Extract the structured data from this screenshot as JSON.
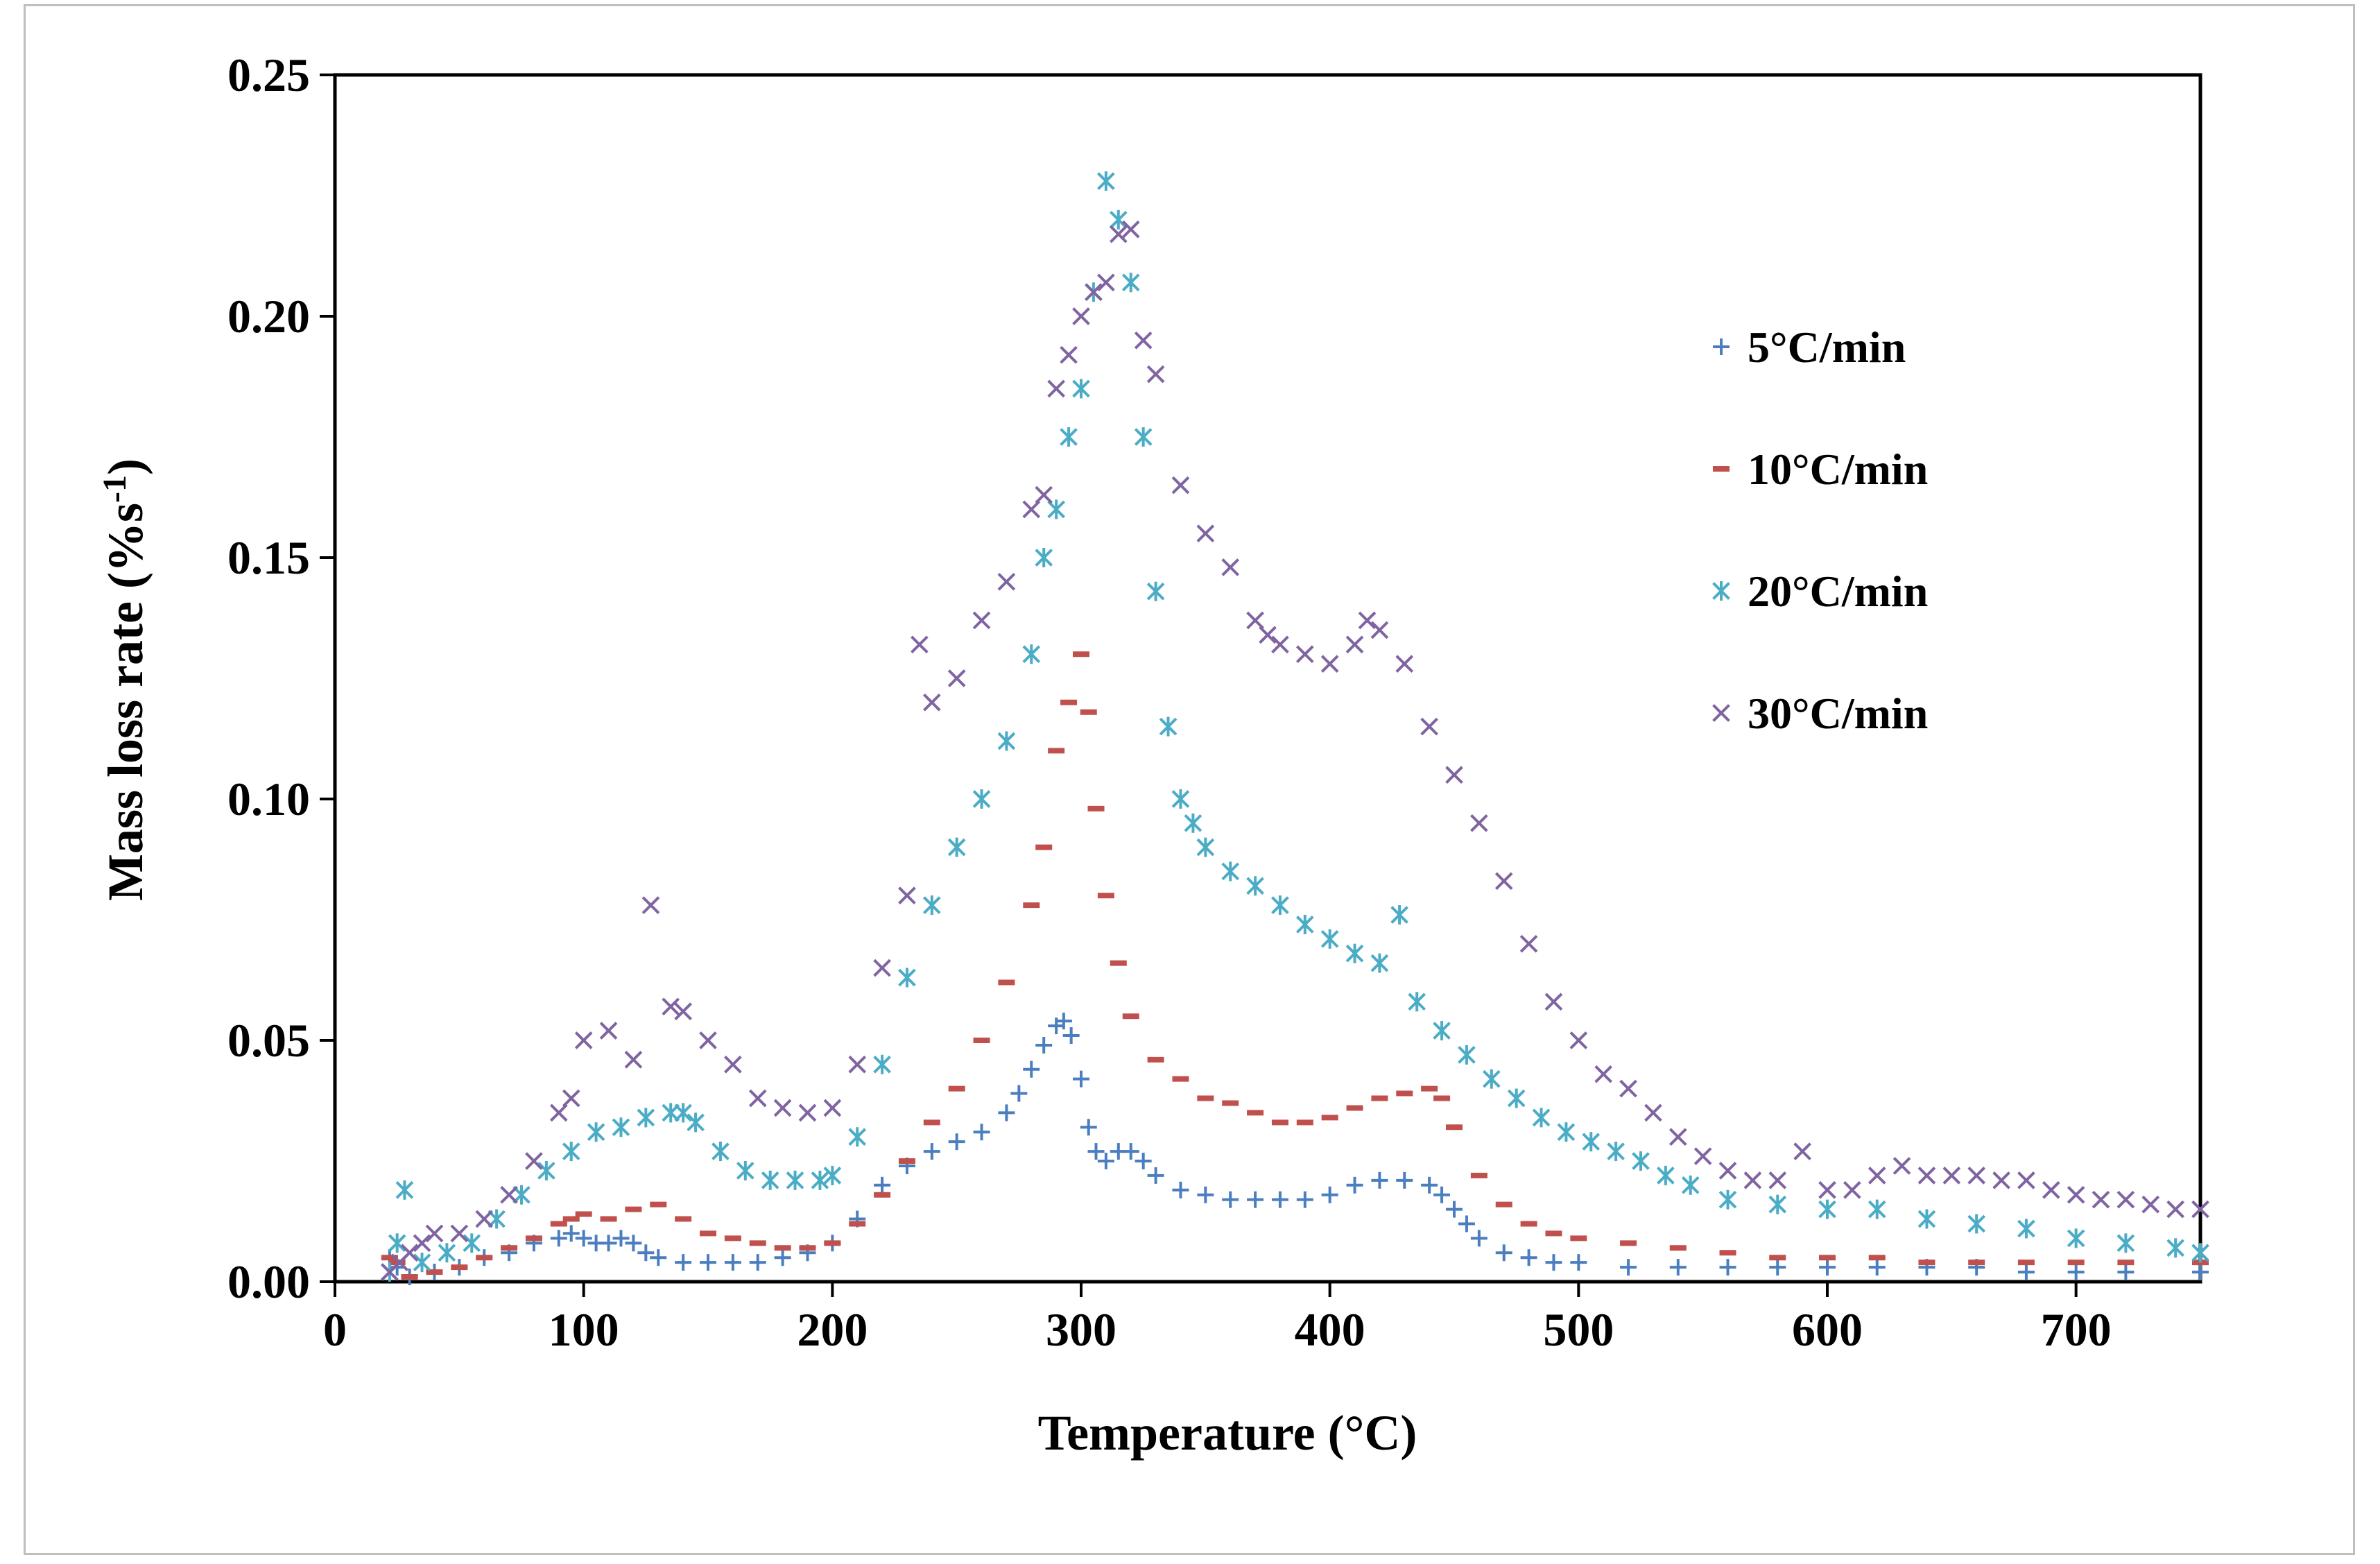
{
  "chart_data": {
    "type": "scatter",
    "title": "",
    "xlabel": "Temperature (°C)",
    "ylabel_main": "Mass loss rate  (%s",
    "ylabel_sup": "-1",
    "ylabel_end": ")",
    "xlim": [
      0,
      750
    ],
    "ylim": [
      0,
      0.25
    ],
    "x_ticks": [
      0,
      100,
      200,
      300,
      400,
      500,
      600,
      700
    ],
    "x_tick_labels": [
      "0",
      "100",
      "200",
      "300",
      "400",
      "500",
      "600",
      "700"
    ],
    "y_ticks": [
      0,
      0.05,
      0.1,
      0.15,
      0.2,
      0.25
    ],
    "y_tick_labels": [
      "0.00",
      "0.05",
      "0.10",
      "0.15",
      "0.20",
      "0.25"
    ],
    "grid": false,
    "legend_position": "right",
    "series": [
      {
        "name": "5°C/min",
        "marker": "plus",
        "color": "#4a7ebf",
        "x": [
          22,
          25,
          30,
          40,
          50,
          60,
          70,
          80,
          90,
          95,
          100,
          105,
          110,
          115,
          120,
          125,
          130,
          140,
          150,
          160,
          170,
          180,
          190,
          200,
          210,
          220,
          230,
          240,
          250,
          260,
          270,
          275,
          280,
          285,
          290,
          293,
          296,
          300,
          303,
          306,
          310,
          315,
          320,
          325,
          330,
          340,
          350,
          360,
          370,
          380,
          390,
          400,
          410,
          420,
          430,
          440,
          445,
          450,
          455,
          460,
          470,
          480,
          490,
          500,
          520,
          540,
          560,
          580,
          600,
          620,
          640,
          660,
          680,
          700,
          720,
          750
        ],
        "y": [
          0.005,
          0.003,
          0.001,
          0.002,
          0.003,
          0.005,
          0.006,
          0.008,
          0.009,
          0.01,
          0.009,
          0.008,
          0.008,
          0.009,
          0.008,
          0.006,
          0.005,
          0.004,
          0.004,
          0.004,
          0.004,
          0.005,
          0.006,
          0.008,
          0.013,
          0.02,
          0.024,
          0.027,
          0.029,
          0.031,
          0.035,
          0.039,
          0.044,
          0.049,
          0.053,
          0.054,
          0.051,
          0.042,
          0.032,
          0.027,
          0.025,
          0.027,
          0.027,
          0.025,
          0.022,
          0.019,
          0.018,
          0.017,
          0.017,
          0.017,
          0.017,
          0.018,
          0.02,
          0.021,
          0.021,
          0.02,
          0.018,
          0.015,
          0.012,
          0.009,
          0.006,
          0.005,
          0.004,
          0.004,
          0.003,
          0.003,
          0.003,
          0.003,
          0.003,
          0.003,
          0.003,
          0.003,
          0.002,
          0.002,
          0.002,
          0.002
        ]
      },
      {
        "name": "10°C/min",
        "marker": "dash",
        "color": "#c0504d",
        "x": [
          22,
          25,
          30,
          40,
          50,
          60,
          70,
          80,
          90,
          95,
          100,
          110,
          120,
          130,
          140,
          150,
          160,
          170,
          180,
          190,
          200,
          210,
          220,
          230,
          240,
          250,
          260,
          270,
          280,
          285,
          290,
          295,
          300,
          303,
          306,
          310,
          315,
          320,
          330,
          340,
          350,
          360,
          370,
          380,
          390,
          400,
          410,
          420,
          430,
          440,
          445,
          450,
          460,
          470,
          480,
          490,
          500,
          520,
          540,
          560,
          580,
          600,
          620,
          640,
          660,
          680,
          700,
          720,
          750
        ],
        "y": [
          0.005,
          0.004,
          0.001,
          0.002,
          0.003,
          0.005,
          0.007,
          0.009,
          0.012,
          0.013,
          0.014,
          0.013,
          0.015,
          0.016,
          0.013,
          0.01,
          0.009,
          0.008,
          0.007,
          0.007,
          0.008,
          0.012,
          0.018,
          0.025,
          0.033,
          0.04,
          0.05,
          0.062,
          0.078,
          0.09,
          0.11,
          0.12,
          0.13,
          0.118,
          0.098,
          0.08,
          0.066,
          0.055,
          0.046,
          0.042,
          0.038,
          0.037,
          0.035,
          0.033,
          0.033,
          0.034,
          0.036,
          0.038,
          0.039,
          0.04,
          0.038,
          0.032,
          0.022,
          0.016,
          0.012,
          0.01,
          0.009,
          0.008,
          0.007,
          0.006,
          0.005,
          0.005,
          0.005,
          0.004,
          0.004,
          0.004,
          0.004,
          0.004,
          0.004
        ]
      },
      {
        "name": "20°C/min",
        "marker": "asterisk",
        "color": "#4bacc6",
        "x": [
          22,
          25,
          28,
          35,
          45,
          55,
          65,
          75,
          85,
          95,
          105,
          115,
          125,
          135,
          140,
          145,
          155,
          165,
          175,
          185,
          195,
          200,
          210,
          220,
          230,
          240,
          250,
          260,
          270,
          280,
          285,
          290,
          295,
          300,
          305,
          310,
          315,
          320,
          325,
          330,
          335,
          340,
          345,
          350,
          360,
          370,
          380,
          390,
          400,
          410,
          420,
          428,
          435,
          445,
          455,
          465,
          475,
          485,
          495,
          505,
          515,
          525,
          535,
          545,
          560,
          580,
          600,
          620,
          640,
          660,
          680,
          700,
          720,
          740,
          750
        ],
        "y": [
          0.002,
          0.008,
          0.019,
          0.004,
          0.006,
          0.008,
          0.013,
          0.018,
          0.023,
          0.027,
          0.031,
          0.032,
          0.034,
          0.035,
          0.035,
          0.033,
          0.027,
          0.023,
          0.021,
          0.021,
          0.021,
          0.022,
          0.03,
          0.045,
          0.063,
          0.078,
          0.09,
          0.1,
          0.112,
          0.13,
          0.15,
          0.16,
          0.175,
          0.185,
          0.205,
          0.228,
          0.22,
          0.207,
          0.175,
          0.143,
          0.115,
          0.1,
          0.095,
          0.09,
          0.085,
          0.082,
          0.078,
          0.074,
          0.071,
          0.068,
          0.066,
          0.076,
          0.058,
          0.052,
          0.047,
          0.042,
          0.038,
          0.034,
          0.031,
          0.029,
          0.027,
          0.025,
          0.022,
          0.02,
          0.017,
          0.016,
          0.015,
          0.015,
          0.013,
          0.012,
          0.011,
          0.009,
          0.008,
          0.007,
          0.006
        ]
      },
      {
        "name": "30°C/min",
        "marker": "cross",
        "color": "#8064a2",
        "x": [
          22,
          26,
          30,
          35,
          40,
          50,
          60,
          70,
          80,
          90,
          95,
          100,
          110,
          120,
          127,
          135,
          140,
          150,
          160,
          170,
          180,
          190,
          200,
          210,
          220,
          230,
          235,
          240,
          250,
          260,
          270,
          280,
          285,
          290,
          295,
          300,
          305,
          310,
          315,
          320,
          325,
          330,
          340,
          350,
          360,
          370,
          375,
          380,
          390,
          400,
          410,
          415,
          420,
          430,
          440,
          450,
          460,
          470,
          480,
          490,
          500,
          510,
          520,
          530,
          540,
          550,
          560,
          570,
          580,
          590,
          600,
          610,
          620,
          630,
          640,
          650,
          660,
          670,
          680,
          690,
          700,
          710,
          720,
          730,
          740,
          750
        ],
        "y": [
          0.002,
          0.004,
          0.006,
          0.008,
          0.01,
          0.01,
          0.013,
          0.018,
          0.025,
          0.035,
          0.038,
          0.05,
          0.052,
          0.046,
          0.078,
          0.057,
          0.056,
          0.05,
          0.045,
          0.038,
          0.036,
          0.035,
          0.036,
          0.045,
          0.065,
          0.08,
          0.132,
          0.12,
          0.125,
          0.137,
          0.145,
          0.16,
          0.163,
          0.185,
          0.192,
          0.2,
          0.205,
          0.207,
          0.217,
          0.218,
          0.195,
          0.188,
          0.165,
          0.155,
          0.148,
          0.137,
          0.134,
          0.132,
          0.13,
          0.128,
          0.132,
          0.137,
          0.135,
          0.128,
          0.115,
          0.105,
          0.095,
          0.083,
          0.07,
          0.058,
          0.05,
          0.043,
          0.04,
          0.035,
          0.03,
          0.026,
          0.023,
          0.021,
          0.021,
          0.027,
          0.019,
          0.019,
          0.022,
          0.024,
          0.022,
          0.022,
          0.022,
          0.021,
          0.021,
          0.019,
          0.018,
          0.017,
          0.017,
          0.016,
          0.015,
          0.015
        ]
      }
    ]
  }
}
